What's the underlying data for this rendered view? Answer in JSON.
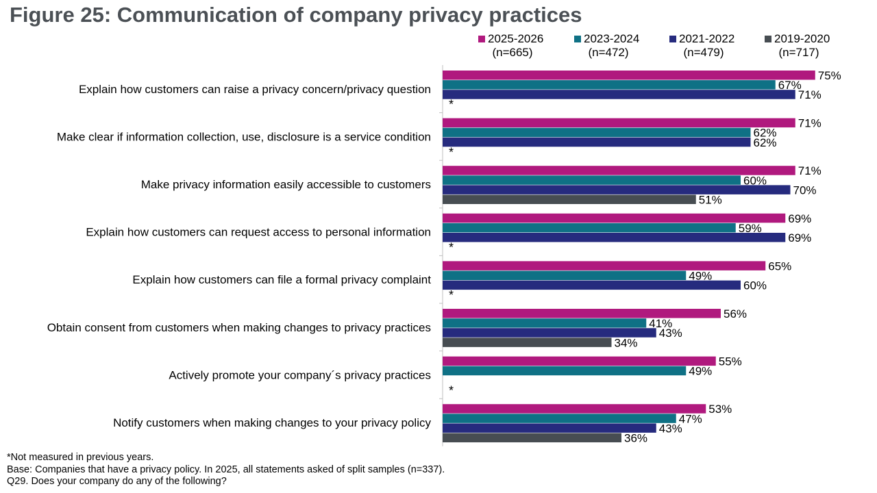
{
  "title": "Figure 25: Communication of company privacy practices",
  "colors": {
    "2025-2026": "#b0197e",
    "2023-2024": "#0f7185",
    "2021-2022": "#262b7e",
    "2019-2020": "#474d52"
  },
  "legend": [
    {
      "name": "2025-2026",
      "n": "(n=665)"
    },
    {
      "name": "2023-2024",
      "n": "(n=472)"
    },
    {
      "name": "2021-2022",
      "n": "(n=479)"
    },
    {
      "name": "2019-2020",
      "n": "(n=717)"
    }
  ],
  "chart_data": {
    "type": "bar",
    "orientation": "horizontal",
    "xlim": [
      0,
      100
    ],
    "categories": [
      "Explain how customers can raise a privacy concern/privacy question",
      "Make clear if information collection, use, disclosure is a service condition",
      "Make privacy information easily accessible to customers",
      "Explain how customers can request access to personal information",
      "Explain how customers can file a formal privacy complaint",
      "Obtain consent from customers when making changes to privacy practices",
      "Actively promote your company´s privacy practices",
      "Notify customers when making changes to your privacy policy"
    ],
    "series": [
      {
        "name": "2025-2026",
        "values": [
          75,
          71,
          71,
          69,
          65,
          56,
          55,
          53
        ]
      },
      {
        "name": "2023-2024",
        "values": [
          67,
          62,
          60,
          59,
          49,
          41,
          49,
          47
        ]
      },
      {
        "name": "2021-2022",
        "values": [
          71,
          62,
          70,
          69,
          60,
          43,
          null,
          43
        ]
      },
      {
        "name": "2019-2020",
        "values": [
          null,
          null,
          51,
          null,
          null,
          34,
          null,
          36
        ]
      }
    ],
    "not_measured_marker": "*",
    "not_measured_rows": [
      0,
      1,
      3,
      4,
      6
    ]
  },
  "footer": {
    "note": "*Not measured in previous years.",
    "base": "Base: Companies that have a privacy policy. In 2025, all statements asked of split samples (n=337).",
    "question": "Q29. Does your company do any of the following?"
  }
}
